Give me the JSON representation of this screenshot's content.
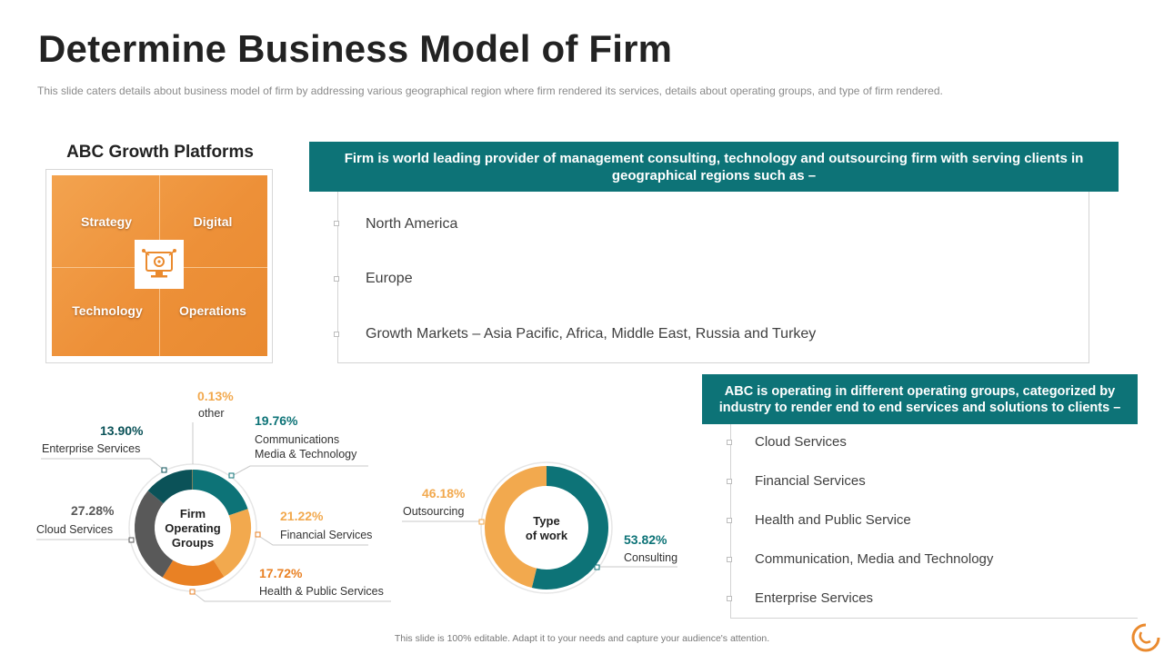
{
  "header": {
    "title": "Determine Business Model of Firm",
    "subtitle": "This slide caters details about business model of firm by addressing various geographical  region where firm rendered  its services,  details about operating groups,  and type of firm rendered."
  },
  "growth_platforms": {
    "title": "ABC Growth Platforms",
    "quadrants": [
      "Strategy",
      "Digital",
      "Technology",
      "Operations"
    ],
    "center_icon": "digital-strategy-icon"
  },
  "regions": {
    "header": "Firm is world leading provider of management consulting, technology and outsourcing firm with serving clients in geographical regions such as –",
    "items": [
      "North America",
      "Europe",
      "Growth Markets – Asia Pacific, Africa, Middle East, Russia and Turkey"
    ]
  },
  "operating_groups": {
    "header": "ABC is operating in different operating groups, categorized by industry to render end to end services and solutions to clients –",
    "items": [
      "Cloud Services",
      "Financial Services",
      "Health and Public Service",
      "Communication, Media and Technology",
      "Enterprise Services"
    ]
  },
  "colors": {
    "teal": "#0d7377",
    "dark_teal": "#0b5258",
    "orange": "#e98124",
    "light_orange": "#f2a94e",
    "gray": "#595959"
  },
  "chart_data": [
    {
      "type": "pie",
      "title": "Firm Operating Groups",
      "center_label": [
        "Firm",
        "Operating",
        "Groups"
      ],
      "slices": [
        {
          "name": "Communications Media & Technology",
          "value": 19.76,
          "label": "19.76%",
          "color": "#0d7377"
        },
        {
          "name": "Financial Services",
          "value": 21.22,
          "label": "21.22%",
          "color": "#f2a94e"
        },
        {
          "name": "Health & Public Services",
          "value": 17.72,
          "label": "17.72%",
          "color": "#e98124"
        },
        {
          "name": "Cloud Services",
          "value": 27.28,
          "label": "27.28%",
          "color": "#595959"
        },
        {
          "name": "Enterprise Services",
          "value": 13.9,
          "label": "13.90%",
          "color": "#0b5258"
        },
        {
          "name": "other",
          "value": 0.13,
          "label": "0.13%",
          "color": "#f2a94e"
        }
      ]
    },
    {
      "type": "pie",
      "title": "Type of work",
      "center_label": [
        "Type",
        "of work"
      ],
      "slices": [
        {
          "name": "Consulting",
          "value": 53.82,
          "label": "53.82%",
          "color": "#0d7377"
        },
        {
          "name": "Outsourcing",
          "value": 46.18,
          "label": "46.18%",
          "color": "#f2a94e"
        }
      ]
    }
  ],
  "footer": "This slide is 100% editable.  Adapt it to your needs and capture your audience's attention."
}
